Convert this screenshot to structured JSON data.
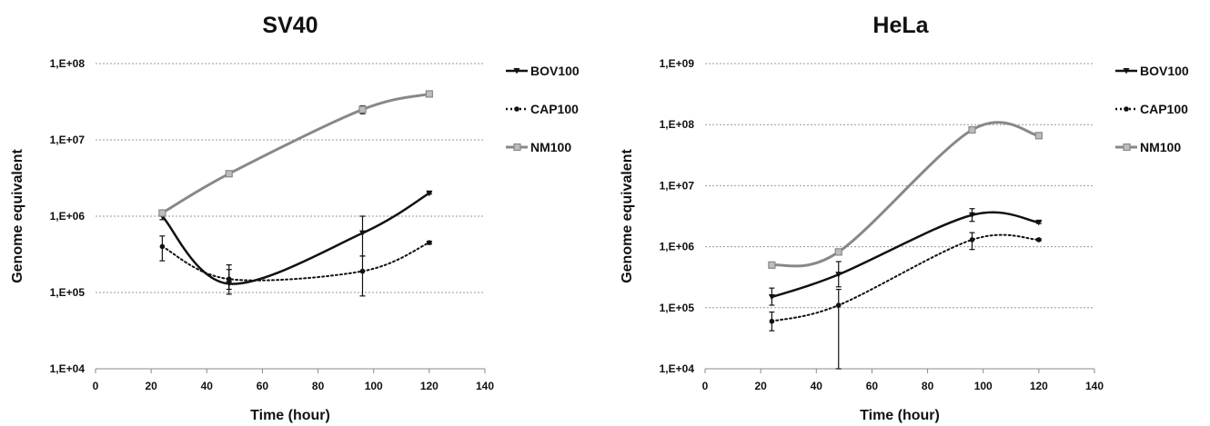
{
  "chart_data": [
    {
      "type": "line",
      "title": "SV40",
      "xlabel": "Time (hour)",
      "ylabel": "Genome equivalent",
      "xlim": [
        0,
        140
      ],
      "xticks": [
        "0",
        "20",
        "40",
        "60",
        "80",
        "100",
        "120",
        "140"
      ],
      "yscale": "log",
      "ylim": [
        10000,
        100000000
      ],
      "yticks": [
        "1,E+04",
        "1,E+05",
        "1,E+06",
        "1,E+07",
        "1,E+08"
      ],
      "grid": true,
      "legend_position": "right",
      "x": [
        24,
        48,
        96,
        120
      ],
      "series": [
        {
          "name": "BOV100",
          "style": "solid",
          "color": "#111111",
          "values": [
            1000000,
            130000,
            600000,
            2000000
          ],
          "errors": [
            [
              900000,
              1100000
            ],
            [
              95000,
              230000
            ],
            [
              300000,
              1000000
            ],
            [
              1950000,
              2050000
            ]
          ]
        },
        {
          "name": "CAP100",
          "style": "dotted",
          "color": "#111111",
          "values": [
            400000,
            150000,
            190000,
            450000
          ],
          "errors": [
            [
              260000,
              550000
            ],
            [
              110000,
              200000
            ],
            [
              90000,
              300000
            ],
            [
              430000,
              470000
            ]
          ]
        },
        {
          "name": "NM100",
          "style": "solid",
          "color": "#888888",
          "values": [
            1100000,
            3600000,
            25000000,
            40000000
          ],
          "errors": [
            [
              1000000,
              1200000
            ],
            [
              3400000,
              3800000
            ],
            [
              22000000,
              28000000
            ],
            [
              38000000,
              42000000
            ]
          ]
        }
      ]
    },
    {
      "type": "line",
      "title": "HeLa",
      "xlabel": "Time (hour)",
      "ylabel": "Genome equivalent",
      "xlim": [
        0,
        140
      ],
      "xticks": [
        "0",
        "20",
        "40",
        "60",
        "80",
        "100",
        "120",
        "140"
      ],
      "yscale": "log",
      "ylim": [
        10000,
        1000000000
      ],
      "yticks": [
        "1,E+04",
        "1,E+05",
        "1,E+06",
        "1,E+07",
        "1,E+08",
        "1,E+09"
      ],
      "grid": true,
      "legend_position": "right",
      "x": [
        24,
        48,
        96,
        120
      ],
      "series": [
        {
          "name": "BOV100",
          "style": "solid",
          "color": "#111111",
          "values": [
            150000,
            350000,
            3300000,
            2500000
          ],
          "errors": [
            [
              110000,
              210000
            ],
            [
              220000,
              570000
            ],
            [
              2600000,
              4200000
            ],
            [
              2400000,
              2600000
            ]
          ]
        },
        {
          "name": "CAP100",
          "style": "dotted",
          "color": "#111111",
          "values": [
            60000,
            110000,
            1300000,
            1300000
          ],
          "errors": [
            [
              42000,
              85000
            ],
            [
              10000,
              200000
            ],
            [
              900000,
              1700000
            ],
            [
              1250000,
              1350000
            ]
          ]
        },
        {
          "name": "NM100",
          "style": "solid",
          "color": "#888888",
          "values": [
            500000,
            820000,
            82000000,
            66000000
          ],
          "errors": [
            [
              470000,
              530000
            ],
            [
              770000,
              870000
            ],
            [
              78000000,
              86000000
            ],
            [
              63000000,
              69000000
            ]
          ]
        }
      ]
    }
  ]
}
